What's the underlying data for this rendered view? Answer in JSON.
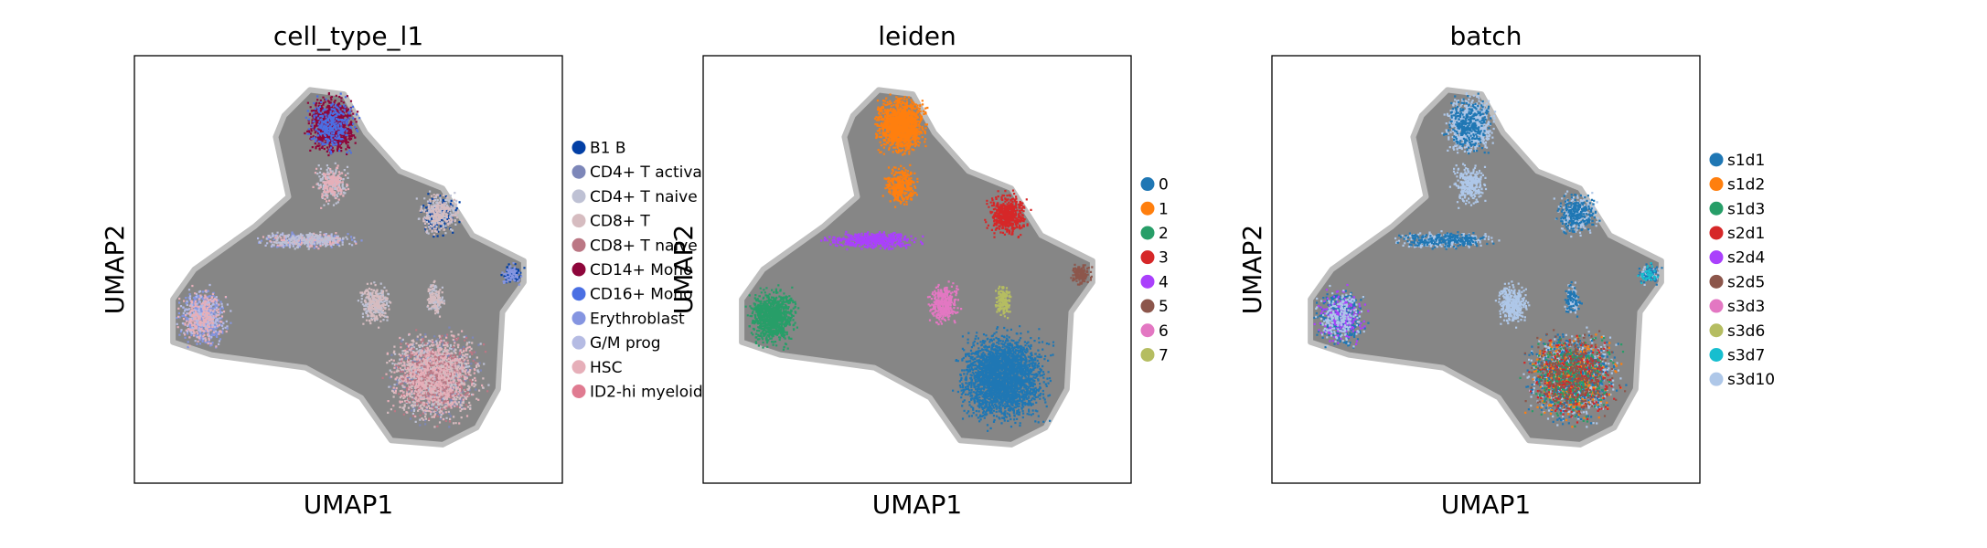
{
  "chart_data": [
    {
      "type": "scatter",
      "title": "cell_type_l1",
      "xlabel": "UMAP1",
      "ylabel": "UMAP2",
      "grid": false,
      "legend_position": "right",
      "legend": [
        {
          "name": "B1 B",
          "color": "#023fa5"
        },
        {
          "name": "CD4+ T activa",
          "color": "#7d87b9"
        },
        {
          "name": "CD4+ T naive",
          "color": "#bec1d4"
        },
        {
          "name": "CD8+ T",
          "color": "#d6bcc0"
        },
        {
          "name": "CD8+ T naive",
          "color": "#bb7784"
        },
        {
          "name": "CD14+ Mono",
          "color": "#8e063b"
        },
        {
          "name": "CD16+ Mono",
          "color": "#4a6fe3"
        },
        {
          "name": "Erythroblast",
          "color": "#8595e1"
        },
        {
          "name": "G/M prog",
          "color": "#b5bbe3"
        },
        {
          "name": "HSC",
          "color": "#e6afb9"
        },
        {
          "name": "ID2-hi myeloid",
          "color": "#e07b91"
        }
      ]
    },
    {
      "type": "scatter",
      "title": "leiden",
      "xlabel": "UMAP1",
      "ylabel": "UMAP2",
      "grid": false,
      "legend_position": "right",
      "legend": [
        {
          "name": "0",
          "color": "#1f77b4"
        },
        {
          "name": "1",
          "color": "#ff7f0e"
        },
        {
          "name": "2",
          "color": "#279e68"
        },
        {
          "name": "3",
          "color": "#d62728"
        },
        {
          "name": "4",
          "color": "#aa40fc"
        },
        {
          "name": "5",
          "color": "#8c564b"
        },
        {
          "name": "6",
          "color": "#e377c2"
        },
        {
          "name": "7",
          "color": "#b5bd61"
        }
      ]
    },
    {
      "type": "scatter",
      "title": "batch",
      "xlabel": "UMAP1",
      "ylabel": "UMAP2",
      "grid": false,
      "legend_position": "right",
      "legend": [
        {
          "name": "s1d1",
          "color": "#1f77b4"
        },
        {
          "name": "s1d2",
          "color": "#ff7f0e"
        },
        {
          "name": "s1d3",
          "color": "#279e68"
        },
        {
          "name": "s2d1",
          "color": "#d62728"
        },
        {
          "name": "s2d4",
          "color": "#aa40fc"
        },
        {
          "name": "s2d5",
          "color": "#8c564b"
        },
        {
          "name": "s3d3",
          "color": "#e377c2"
        },
        {
          "name": "s3d6",
          "color": "#b5bd61"
        },
        {
          "name": "s3d7",
          "color": "#17becf"
        },
        {
          "name": "s3d10",
          "color": "#aec7e8"
        }
      ]
    }
  ],
  "colors": {
    "edge_gray": "#7f7f7f",
    "frame": "#000000",
    "background": "#ffffff"
  }
}
